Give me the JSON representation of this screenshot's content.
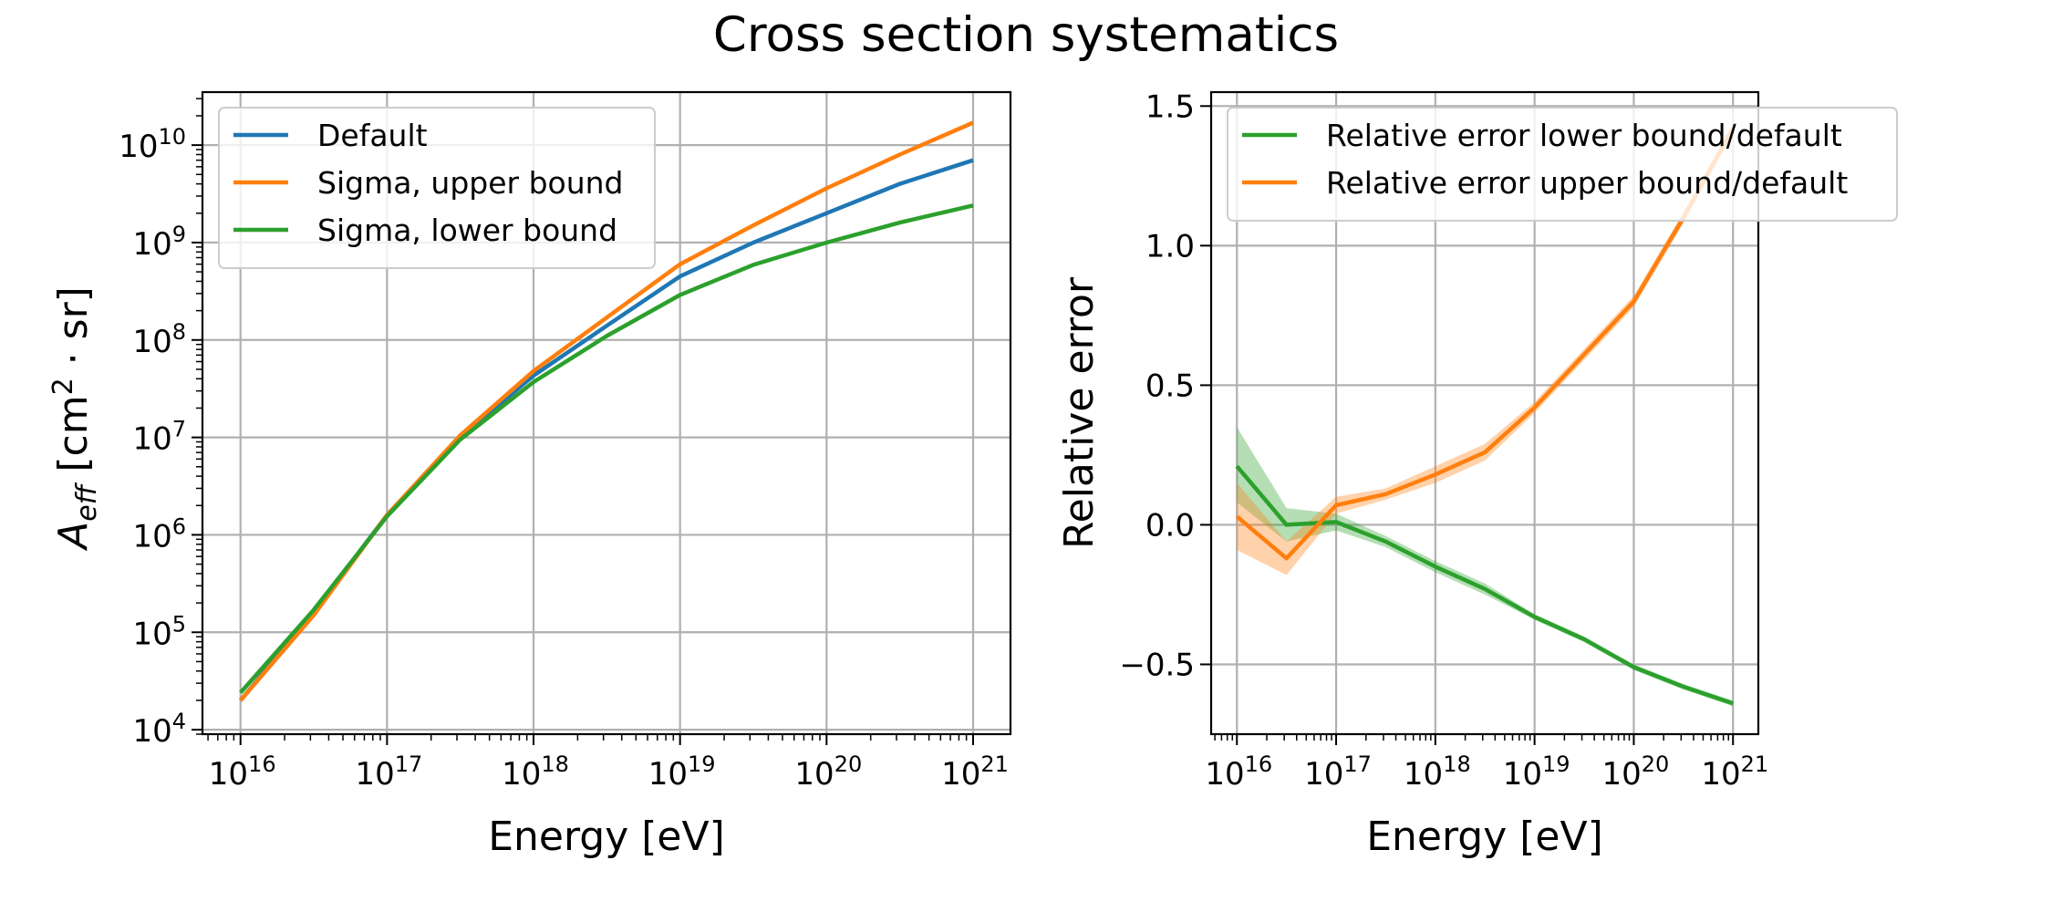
{
  "title": "Cross section systematics",
  "chart_data": [
    {
      "type": "line",
      "xscale": "log",
      "yscale": "log",
      "xlim": [
        5500000000000000.0,
        1.8e+21
      ],
      "ylim": [
        9000,
        35000000000.0
      ],
      "xlabel": "Energy [eV]",
      "ylabel_main": "A",
      "ylabel_sub": "eff",
      "ylabel_unit_prefix": " [cm",
      "ylabel_unit_sup": "2",
      "ylabel_unit_suffix": " · sr]",
      "x_ticks": [
        {
          "value": 1e+16,
          "base": "10",
          "exp": "16"
        },
        {
          "value": 1e+17,
          "base": "10",
          "exp": "17"
        },
        {
          "value": 1e+18,
          "base": "10",
          "exp": "18"
        },
        {
          "value": 1e+19,
          "base": "10",
          "exp": "19"
        },
        {
          "value": 1e+20,
          "base": "10",
          "exp": "20"
        },
        {
          "value": 1e+21,
          "base": "10",
          "exp": "21"
        }
      ],
      "y_ticks": [
        {
          "value": 10000.0,
          "base": "10",
          "exp": "4"
        },
        {
          "value": 100000.0,
          "base": "10",
          "exp": "5"
        },
        {
          "value": 1000000.0,
          "base": "10",
          "exp": "6"
        },
        {
          "value": 10000000.0,
          "base": "10",
          "exp": "7"
        },
        {
          "value": 100000000.0,
          "base": "10",
          "exp": "8"
        },
        {
          "value": 1000000000.0,
          "base": "10",
          "exp": "9"
        },
        {
          "value": 10000000000.0,
          "base": "10",
          "exp": "10"
        }
      ],
      "grid": true,
      "legend_position": "top-left",
      "x": [
        1e+16,
        3.16e+16,
        1e+17,
        3.16e+17,
        1e+18,
        3.16e+18,
        1e+19,
        3.16e+19,
        1e+20,
        3.16e+20,
        1e+21
      ],
      "series": [
        {
          "name": "Default",
          "color": "#1f77b4",
          "values": [
            20000.0,
            160000.0,
            1600000.0,
            10000000.0,
            43000000.0,
            140000000.0,
            450000000.0,
            1000000000.0,
            2000000000.0,
            4000000000.0,
            7000000000.0
          ]
        },
        {
          "name": "Sigma, upper bound",
          "color": "#ff7f0e",
          "values": [
            20000.0,
            150000.0,
            1600000.0,
            10500000.0,
            48000000.0,
            170000000.0,
            600000000.0,
            1500000000.0,
            3600000000.0,
            8000000000.0,
            17000000000.0
          ]
        },
        {
          "name": "Sigma, lower bound",
          "color": "#2ca02c",
          "values": [
            24000.0,
            170000.0,
            1550000.0,
            9500000.0,
            37000000.0,
            110000000.0,
            290000000.0,
            590000000.0,
            1000000000.0,
            1600000000.0,
            2400000000.0
          ]
        }
      ]
    },
    {
      "type": "line",
      "xscale": "log",
      "yscale": "linear",
      "xlim": [
        5500000000000000.0,
        1.8e+21
      ],
      "ylim": [
        -0.75,
        1.55
      ],
      "xlabel": "Energy [eV]",
      "ylabel": "Relative error",
      "x_ticks": [
        {
          "value": 1e+16,
          "base": "10",
          "exp": "16"
        },
        {
          "value": 1e+17,
          "base": "10",
          "exp": "17"
        },
        {
          "value": 1e+18,
          "base": "10",
          "exp": "18"
        },
        {
          "value": 1e+19,
          "base": "10",
          "exp": "19"
        },
        {
          "value": 1e+20,
          "base": "10",
          "exp": "20"
        },
        {
          "value": 1e+21,
          "base": "10",
          "exp": "21"
        }
      ],
      "y_ticks": [
        {
          "value": -0.5,
          "label": "−0.5"
        },
        {
          "value": 0.0,
          "label": "0.0"
        },
        {
          "value": 0.5,
          "label": "0.5"
        },
        {
          "value": 1.0,
          "label": "1.0"
        },
        {
          "value": 1.5,
          "label": "1.5"
        }
      ],
      "grid": true,
      "legend_position": "top-left",
      "x": [
        1e+16,
        3.16e+16,
        1e+17,
        3.16e+17,
        1e+18,
        3.16e+18,
        1e+19,
        3.16e+19,
        1e+20,
        3.16e+20,
        1e+21
      ],
      "series": [
        {
          "name": "Relative error lower bound/default",
          "color": "#2ca02c",
          "values": [
            0.21,
            0.0,
            0.01,
            -0.06,
            -0.15,
            -0.23,
            -0.33,
            -0.41,
            -0.51,
            -0.58,
            -0.64
          ],
          "lower": [
            0.08,
            -0.06,
            -0.02,
            -0.08,
            -0.17,
            -0.25,
            -0.34,
            -0.42,
            -0.52,
            -0.59,
            -0.65
          ],
          "upper": [
            0.35,
            0.06,
            0.04,
            -0.04,
            -0.13,
            -0.21,
            -0.32,
            -0.4,
            -0.5,
            -0.57,
            -0.63
          ]
        },
        {
          "name": "Relative error upper bound/default",
          "color": "#ff7f0e",
          "values": [
            0.03,
            -0.12,
            0.07,
            0.11,
            0.18,
            0.26,
            0.42,
            0.61,
            0.8,
            1.1,
            1.42
          ],
          "lower": [
            -0.09,
            -0.18,
            0.04,
            0.09,
            0.15,
            0.23,
            0.4,
            0.59,
            0.78,
            1.08,
            1.4
          ],
          "upper": [
            0.15,
            -0.06,
            0.1,
            0.13,
            0.21,
            0.29,
            0.44,
            0.63,
            0.82,
            1.12,
            1.44
          ]
        }
      ]
    }
  ]
}
